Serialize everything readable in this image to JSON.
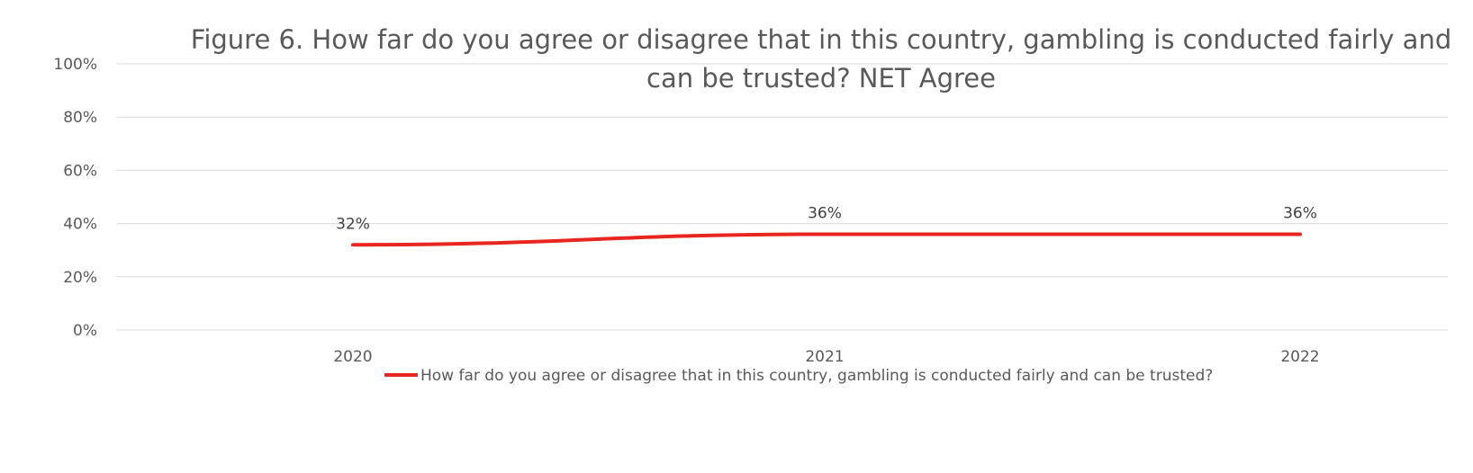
{
  "chart_data": {
    "type": "line",
    "title": "Figure 6. How far do you agree or disagree that in this country, gambling is conducted fairly and can be trusted? NET Agree",
    "title_lines": [
      "Figure 6. How far do you agree or disagree that in this country, gambling is conducted fairly and",
      "can be trusted? NET Agree"
    ],
    "categories": [
      "2020",
      "2021",
      "2022"
    ],
    "series": [
      {
        "name": "How far do you agree or disagree that in this country, gambling is conducted fairly and can be trusted?",
        "values": [
          32,
          36,
          36
        ],
        "labels": [
          "32%",
          "36%",
          "36%"
        ],
        "color": "#e8251f"
      }
    ],
    "y_ticks": [
      "0%",
      "20%",
      "40%",
      "60%",
      "80%",
      "100%"
    ],
    "ylim": [
      0,
      100
    ],
    "grid": true,
    "legend_position": "bottom"
  }
}
